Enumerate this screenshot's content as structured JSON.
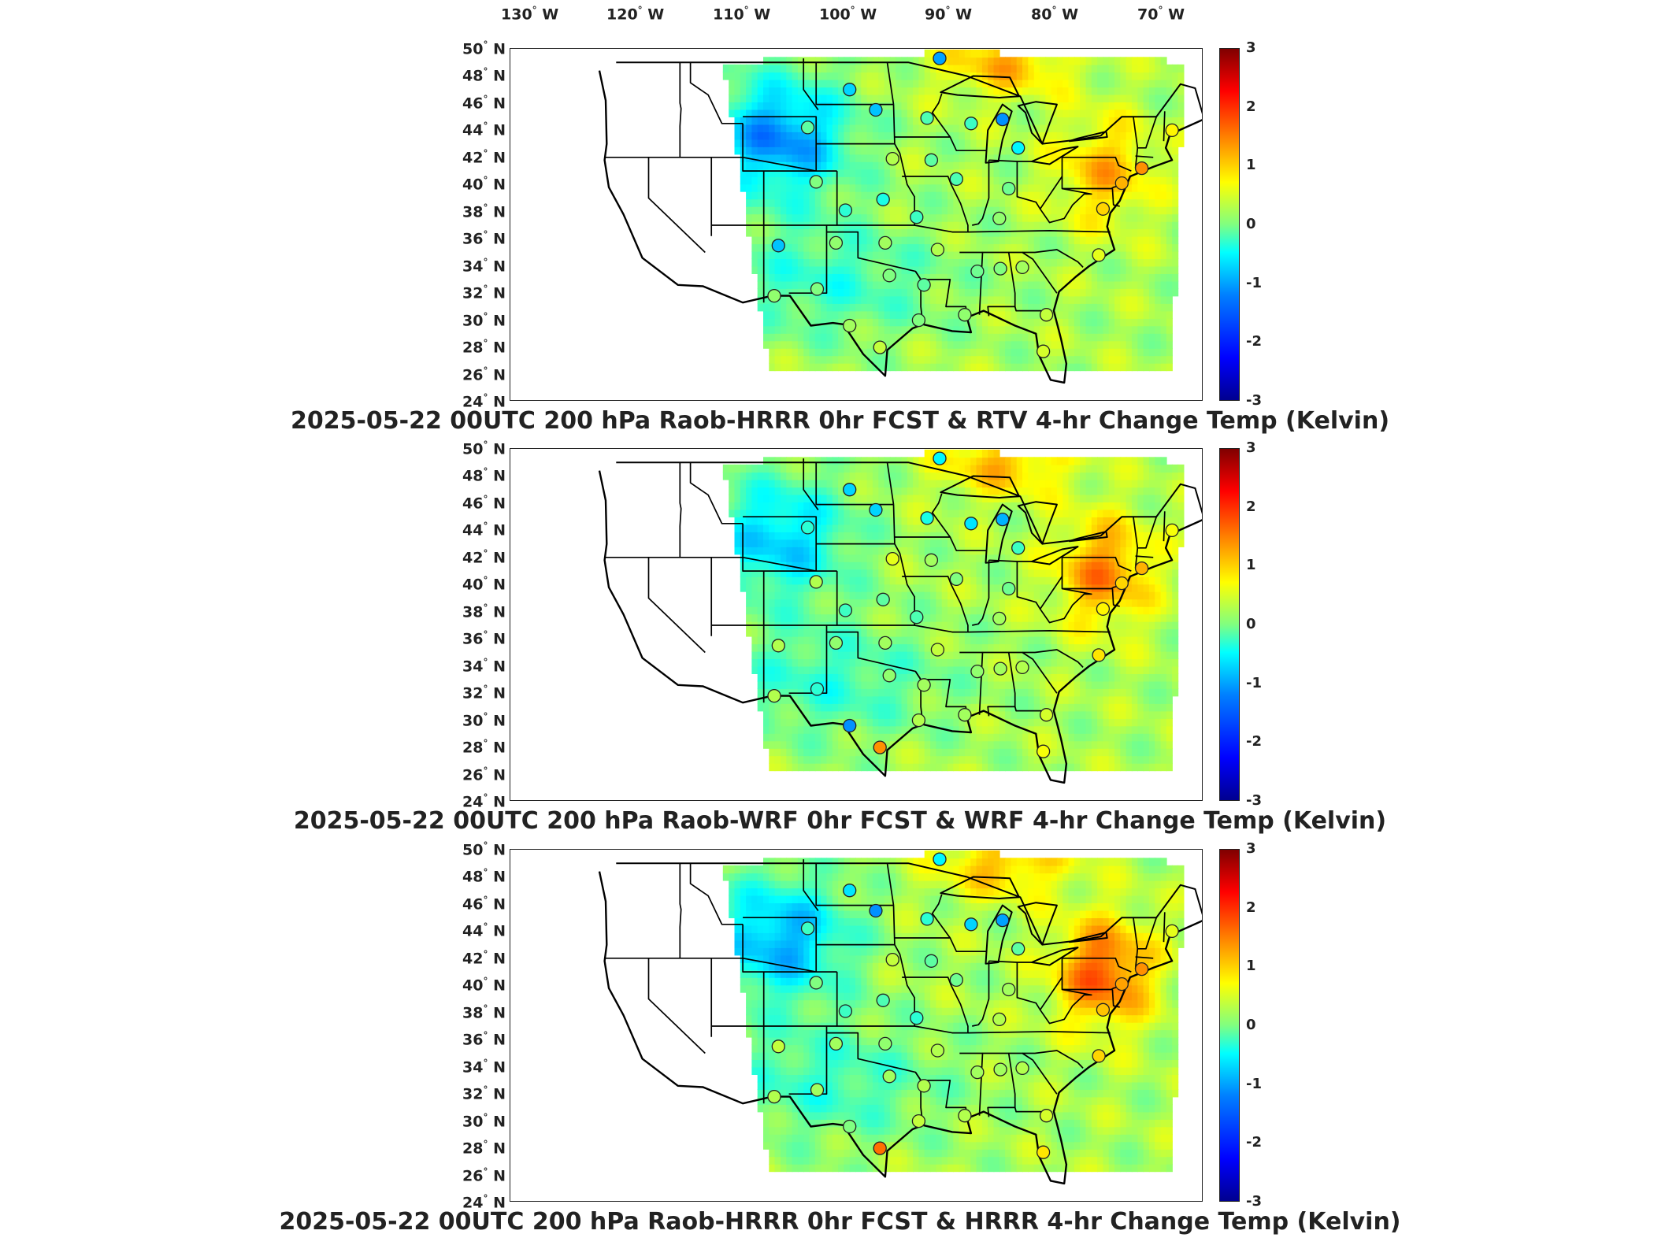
{
  "lon_labels": [
    {
      "deg": "130",
      "hemi": "W"
    },
    {
      "deg": "120",
      "hemi": "W"
    },
    {
      "deg": "110",
      "hemi": "W"
    },
    {
      "deg": "100",
      "hemi": "W"
    },
    {
      "deg": "90",
      "hemi": "W"
    },
    {
      "deg": "80",
      "hemi": "W"
    },
    {
      "deg": "70",
      "hemi": "W"
    }
  ],
  "lat_labels": [
    {
      "deg": "50",
      "hemi": "N"
    },
    {
      "deg": "48",
      "hemi": "N"
    },
    {
      "deg": "46",
      "hemi": "N"
    },
    {
      "deg": "44",
      "hemi": "N"
    },
    {
      "deg": "42",
      "hemi": "N"
    },
    {
      "deg": "40",
      "hemi": "N"
    },
    {
      "deg": "38",
      "hemi": "N"
    },
    {
      "deg": "36",
      "hemi": "N"
    },
    {
      "deg": "34",
      "hemi": "N"
    },
    {
      "deg": "32",
      "hemi": "N"
    },
    {
      "deg": "30",
      "hemi": "N"
    },
    {
      "deg": "28",
      "hemi": "N"
    },
    {
      "deg": "26",
      "hemi": "N"
    },
    {
      "deg": "24",
      "hemi": "N"
    }
  ],
  "colorbar": {
    "ticks": [
      "3",
      "2",
      "1",
      "0",
      "-1",
      "-2",
      "-3"
    ],
    "min": -3,
    "max": 3,
    "colormap": "jet",
    "unit": "Kelvin"
  },
  "panels": [
    {
      "title": "2025-05-22 00UTC 200 hPa Raob-HRRR 0hr FCST & RTV 4-hr Change Temp (Kelvin)",
      "warm_east": 0.9,
      "cold_west": -1.7
    },
    {
      "title": "2025-05-22 00UTC 200 hPa Raob-WRF 0hr FCST & WRF 4-hr Change Temp (Kelvin)",
      "warm_east": 1.2,
      "cold_west": -1.3
    },
    {
      "title": "2025-05-22 00UTC 200 hPa Raob-HRRR 0hr FCST & HRRR 4-hr Change Temp (Kelvin)",
      "warm_east": 1.5,
      "cold_west": -1.5
    }
  ],
  "stations": [
    {
      "lon": -92.2,
      "lat": 49.3
    },
    {
      "lon": -100.8,
      "lat": 47.0
    },
    {
      "lon": -98.3,
      "lat": 45.5
    },
    {
      "lon": -93.4,
      "lat": 44.9
    },
    {
      "lon": -89.2,
      "lat": 44.5
    },
    {
      "lon": -86.2,
      "lat": 44.8
    },
    {
      "lon": -84.7,
      "lat": 42.7
    },
    {
      "lon": -104.8,
      "lat": 44.2
    },
    {
      "lon": -96.7,
      "lat": 41.9
    },
    {
      "lon": -93.0,
      "lat": 41.8
    },
    {
      "lon": -90.6,
      "lat": 40.4
    },
    {
      "lon": -85.6,
      "lat": 39.7
    },
    {
      "lon": -104.0,
      "lat": 40.2
    },
    {
      "lon": -101.2,
      "lat": 38.1
    },
    {
      "lon": -97.6,
      "lat": 38.9
    },
    {
      "lon": -94.4,
      "lat": 37.6
    },
    {
      "lon": -86.5,
      "lat": 37.5
    },
    {
      "lon": -107.6,
      "lat": 35.5
    },
    {
      "lon": -102.1,
      "lat": 35.7
    },
    {
      "lon": -97.4,
      "lat": 35.7
    },
    {
      "lon": -92.4,
      "lat": 35.2
    },
    {
      "lon": -88.6,
      "lat": 33.6
    },
    {
      "lon": -86.4,
      "lat": 33.8
    },
    {
      "lon": -84.3,
      "lat": 33.9
    },
    {
      "lon": -97.0,
      "lat": 33.3
    },
    {
      "lon": -93.7,
      "lat": 32.6
    },
    {
      "lon": -108.0,
      "lat": 31.8
    },
    {
      "lon": -103.9,
      "lat": 32.3
    },
    {
      "lon": -100.8,
      "lat": 29.6
    },
    {
      "lon": -97.9,
      "lat": 28.0
    },
    {
      "lon": -94.2,
      "lat": 30.0
    },
    {
      "lon": -89.8,
      "lat": 30.4
    },
    {
      "lon": -82.0,
      "lat": 30.4
    },
    {
      "lon": -82.3,
      "lat": 27.7
    },
    {
      "lon": -77.0,
      "lat": 34.8
    },
    {
      "lon": -76.6,
      "lat": 38.2
    },
    {
      "lon": -74.8,
      "lat": 40.1
    },
    {
      "lon": -72.9,
      "lat": 41.2
    },
    {
      "lon": -70.0,
      "lat": 44.0
    }
  ],
  "station_values": [
    [
      -1.3,
      -1.0,
      -1.1,
      -0.3,
      -0.4,
      -1.4,
      -0.8,
      -0.2,
      0.3,
      -0.2,
      -0.3,
      -0.1,
      0.0,
      -0.5,
      -0.6,
      -0.4,
      0.1,
      -1.1,
      0.1,
      0.2,
      0.3,
      -0.1,
      0.0,
      0.2,
      0.0,
      -0.2,
      0.1,
      0.0,
      0.2,
      0.4,
      0.0,
      0.1,
      0.4,
      0.5,
      0.6,
      1.0,
      1.2,
      1.4,
      0.8
    ],
    [
      -0.8,
      -1.0,
      -1.0,
      -0.6,
      -0.9,
      -1.2,
      -0.4,
      -0.5,
      0.6,
      0.2,
      0.0,
      -0.1,
      0.3,
      -0.4,
      -0.2,
      -0.3,
      0.2,
      0.3,
      0.1,
      0.2,
      0.4,
      0.1,
      0.2,
      0.3,
      0.1,
      0.2,
      0.3,
      -0.5,
      -1.4,
      1.4,
      0.3,
      0.2,
      0.5,
      0.7,
      0.9,
      0.8,
      1.0,
      1.2,
      0.7
    ],
    [
      -0.8,
      -0.9,
      -1.4,
      -0.5,
      -1.0,
      -1.3,
      -0.2,
      -0.4,
      0.4,
      -0.2,
      -0.1,
      0.2,
      0.0,
      -0.4,
      -0.3,
      -0.5,
      0.3,
      0.4,
      0.2,
      0.1,
      0.3,
      0.2,
      0.2,
      0.3,
      0.2,
      0.3,
      0.3,
      0.2,
      0.0,
      1.6,
      0.4,
      0.3,
      0.5,
      0.9,
      1.0,
      1.1,
      1.3,
      1.4,
      0.6
    ]
  ]
}
